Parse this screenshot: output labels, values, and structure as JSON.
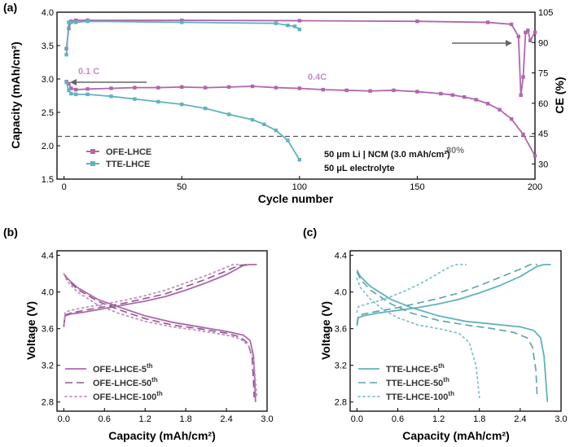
{
  "colors": {
    "ofe": "#b066ad",
    "tte": "#5fb3be",
    "ofe_light": "#c48ec4",
    "tte_light": "#85c2cc",
    "ofe_dash": "#8d5a8a",
    "tte_dash": "#5ea2ad",
    "ref_line": "#555555",
    "arrow": "#666666"
  },
  "chart_data": [
    {
      "panel": "(a)",
      "type": "scatter",
      "xlabel": "Cycle number",
      "ylabel": "Capacity (mAh/cm²)",
      "y2label": "CE (%)",
      "xlim": [
        -3,
        200
      ],
      "ylim": [
        1.5,
        4.0
      ],
      "y2lim": [
        22.5,
        105
      ],
      "xticks": [
        "0",
        "50",
        "100",
        "150",
        "200"
      ],
      "yticks": [
        "1.5",
        "2.0",
        "2.5",
        "3.0",
        "3.5",
        "4.0"
      ],
      "y2ticks": [
        "30",
        "45",
        "60",
        "75",
        "90",
        "105"
      ],
      "legend": [
        "OFE-LHCE",
        "TTE-LHCE"
      ],
      "legend_position": "bottom-left",
      "annotations": {
        "rate1": "0.1 C",
        "rate2": "0.4C",
        "ref": "80%",
        "cell": "50 μm Li | NCM (3.0 mAh/cm²)",
        "electrolyte": "50 μL electrolyte"
      },
      "reference_line_capacity": 2.14,
      "series": [
        {
          "name": "OFE-LHCE",
          "axis": "capacity",
          "x": [
            1,
            2,
            3,
            5,
            10,
            20,
            30,
            40,
            50,
            60,
            70,
            80,
            90,
            100,
            110,
            120,
            130,
            140,
            150,
            160,
            165,
            170,
            175,
            180,
            185,
            190,
            195,
            200
          ],
          "y": [
            2.96,
            2.93,
            2.86,
            2.84,
            2.85,
            2.86,
            2.87,
            2.87,
            2.88,
            2.87,
            2.88,
            2.89,
            2.87,
            2.86,
            2.84,
            2.83,
            2.82,
            2.83,
            2.81,
            2.78,
            2.76,
            2.73,
            2.69,
            2.63,
            2.54,
            2.4,
            2.17,
            1.85
          ]
        },
        {
          "name": "TTE-LHCE",
          "axis": "capacity",
          "x": [
            1,
            2,
            3,
            5,
            10,
            20,
            30,
            40,
            50,
            60,
            70,
            80,
            85,
            90,
            95,
            100
          ],
          "y": [
            2.95,
            2.83,
            2.78,
            2.77,
            2.77,
            2.74,
            2.7,
            2.66,
            2.62,
            2.56,
            2.47,
            2.39,
            2.32,
            2.23,
            2.08,
            1.79
          ]
        },
        {
          "name": "OFE-LHCE CE",
          "axis": "ce",
          "x": [
            1,
            2,
            3,
            5,
            10,
            50,
            100,
            150,
            180,
            190,
            193,
            194,
            195,
            196,
            197,
            198,
            200
          ],
          "y": [
            87,
            97,
            100.5,
            101,
            101,
            101,
            100.8,
            100.5,
            100,
            99,
            93,
            64,
            73,
            95,
            96,
            91,
            95
          ]
        },
        {
          "name": "TTE-LHCE CE",
          "axis": "ce",
          "x": [
            1,
            2,
            3,
            5,
            10,
            50,
            90,
            95,
            98,
            100
          ],
          "y": [
            84,
            100,
            100,
            100,
            100.5,
            100,
            99.5,
            98.5,
            98,
            96.5
          ]
        }
      ]
    },
    {
      "panel": "(b)",
      "type": "line",
      "xlabel": "Capacity (mAh/cm²)",
      "ylabel": "Voltage (V)",
      "xlim": [
        -0.1,
        3.0
      ],
      "ylim": [
        2.7,
        4.45
      ],
      "xticks": [
        "0.0",
        "0.6",
        "1.2",
        "1.8",
        "2.4",
        "3.0"
      ],
      "yticks": [
        "2.8",
        "3.2",
        "3.6",
        "4.0",
        "4.4"
      ],
      "legend": [
        {
          "base": "OFE-LHCE-5",
          "sup": "th"
        },
        {
          "base": "OFE-LHCE-50",
          "sup": "th"
        },
        {
          "base": "OFE-LHCE-100",
          "sup": "th"
        }
      ],
      "legend_position": "bottom-left",
      "series": [
        {
          "name": "OFE-LHCE-5th",
          "charge": {
            "x": [
              0,
              0.02,
              0.1,
              0.3,
              0.6,
              0.9,
              1.2,
              1.5,
              1.8,
              2.1,
              2.4,
              2.65,
              2.75,
              2.85
            ],
            "y": [
              3.63,
              3.74,
              3.76,
              3.78,
              3.82,
              3.86,
              3.9,
              3.95,
              4.02,
              4.1,
              4.19,
              4.29,
              4.3,
              4.3
            ]
          },
          "discharge": {
            "x": [
              0,
              0.05,
              0.2,
              0.5,
              0.8,
              1.2,
              1.6,
              2.0,
              2.4,
              2.65,
              2.75,
              2.8,
              2.82,
              2.83
            ],
            "y": [
              4.2,
              4.15,
              4.05,
              3.92,
              3.84,
              3.74,
              3.67,
              3.62,
              3.57,
              3.53,
              3.47,
              3.3,
              3.0,
              2.8
            ]
          }
        },
        {
          "name": "OFE-LHCE-50th",
          "charge": {
            "x": [
              0,
              0.02,
              0.1,
              0.3,
              0.6,
              0.9,
              1.2,
              1.5,
              1.8,
              2.1,
              2.4,
              2.58,
              2.7
            ],
            "y": [
              3.62,
              3.75,
              3.77,
              3.8,
              3.84,
              3.88,
              3.93,
              3.98,
              4.06,
              4.14,
              4.23,
              4.29,
              4.3
            ]
          },
          "discharge": {
            "x": [
              0,
              0.05,
              0.2,
              0.5,
              0.8,
              1.2,
              1.6,
              2.0,
              2.4,
              2.6,
              2.72,
              2.78,
              2.8,
              2.81
            ],
            "y": [
              4.2,
              4.14,
              4.03,
              3.9,
              3.81,
              3.71,
              3.64,
              3.6,
              3.55,
              3.51,
              3.44,
              3.28,
              3.0,
              2.85
            ]
          }
        },
        {
          "name": "OFE-LHCE-100th",
          "charge": {
            "x": [
              0,
              0.02,
              0.1,
              0.3,
              0.6,
              0.9,
              1.2,
              1.5,
              1.8,
              2.1,
              2.4,
              2.5,
              2.6
            ],
            "y": [
              3.65,
              3.78,
              3.8,
              3.83,
              3.87,
              3.91,
              3.96,
              4.02,
              4.1,
              4.18,
              4.27,
              4.3,
              4.3
            ]
          },
          "discharge": {
            "x": [
              0,
              0.05,
              0.2,
              0.5,
              0.8,
              1.2,
              1.6,
              2.0,
              2.4,
              2.6,
              2.72,
              2.8,
              2.83,
              2.85
            ],
            "y": [
              4.2,
              4.12,
              4.0,
              3.86,
              3.77,
              3.68,
              3.62,
              3.58,
              3.53,
              3.49,
              3.42,
              3.28,
              3.02,
              2.85
            ]
          }
        }
      ]
    },
    {
      "panel": "(c)",
      "type": "line",
      "xlabel": "Capacity (mAh/cm²)",
      "ylabel": "Voltage (V)",
      "xlim": [
        -0.1,
        3.0
      ],
      "ylim": [
        2.7,
        4.45
      ],
      "xticks": [
        "0.0",
        "0.6",
        "1.2",
        "1.8",
        "2.4",
        "3.0"
      ],
      "yticks": [
        "2.8",
        "3.2",
        "3.6",
        "4.0",
        "4.4"
      ],
      "legend": [
        {
          "base": "TTE-LHCE-5",
          "sup": "th"
        },
        {
          "base": "TTE-LHCE-50",
          "sup": "th"
        },
        {
          "base": "TTE-LHCE-100",
          "sup": "th"
        }
      ],
      "legend_position": "bottom-left",
      "series": [
        {
          "name": "TTE-LHCE-5th",
          "charge": {
            "x": [
              0,
              0.02,
              0.1,
              0.3,
              0.6,
              0.9,
              1.2,
              1.5,
              1.8,
              2.1,
              2.4,
              2.65,
              2.75,
              2.85
            ],
            "y": [
              3.63,
              3.72,
              3.74,
              3.77,
              3.8,
              3.83,
              3.87,
              3.92,
              3.99,
              4.07,
              4.17,
              4.28,
              4.3,
              4.3
            ]
          },
          "discharge": {
            "x": [
              0,
              0.05,
              0.2,
              0.5,
              0.8,
              1.2,
              1.6,
              2.0,
              2.4,
              2.6,
              2.7,
              2.75,
              2.78,
              2.8
            ],
            "y": [
              4.24,
              4.17,
              4.06,
              3.92,
              3.83,
              3.74,
              3.68,
              3.65,
              3.62,
              3.58,
              3.5,
              3.3,
              3.0,
              2.8
            ]
          }
        },
        {
          "name": "TTE-LHCE-50th",
          "charge": {
            "x": [
              0,
              0.02,
              0.1,
              0.3,
              0.6,
              0.9,
              1.2,
              1.5,
              1.8,
              2.1,
              2.4,
              2.55,
              2.65
            ],
            "y": [
              3.65,
              3.74,
              3.76,
              3.79,
              3.83,
              3.88,
              3.93,
              3.99,
              4.07,
              4.16,
              4.25,
              4.3,
              4.3
            ]
          },
          "discharge": {
            "x": [
              0,
              0.05,
              0.2,
              0.5,
              0.8,
              1.2,
              1.6,
              2.0,
              2.3,
              2.5,
              2.58,
              2.63,
              2.65
            ],
            "y": [
              4.22,
              4.14,
              4.02,
              3.87,
              3.77,
              3.69,
              3.64,
              3.6,
              3.56,
              3.5,
              3.4,
              3.15,
              2.85
            ]
          }
        },
        {
          "name": "TTE-LHCE-100th",
          "charge": {
            "x": [
              0,
              0.02,
              0.1,
              0.3,
              0.5,
              0.7,
              0.9,
              1.1,
              1.3,
              1.45,
              1.6
            ],
            "y": [
              3.78,
              3.84,
              3.86,
              3.9,
              3.95,
              4.01,
              4.08,
              4.16,
              4.25,
              4.3,
              4.3
            ]
          },
          "discharge": {
            "x": [
              0,
              0.05,
              0.2,
              0.4,
              0.6,
              0.9,
              1.2,
              1.5,
              1.65,
              1.75,
              1.8
            ],
            "y": [
              4.15,
              4.05,
              3.92,
              3.8,
              3.72,
              3.64,
              3.6,
              3.55,
              3.45,
              3.2,
              2.85
            ]
          }
        }
      ]
    }
  ]
}
